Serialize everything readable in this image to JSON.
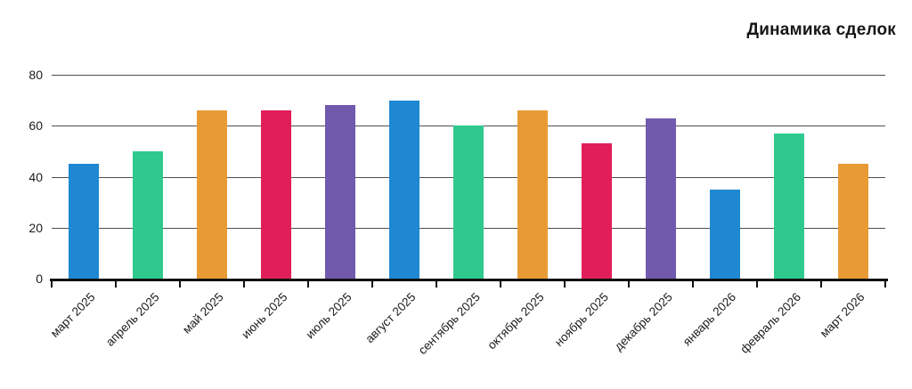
{
  "chart_data": {
    "type": "bar",
    "title": "Динамика сделок",
    "categories": [
      "март 2025",
      "апрель 2025",
      "май 2025",
      "июнь 2025",
      "июль 2025",
      "август 2025",
      "сентябрь 2025",
      "октябрь 2025",
      "ноябрь 2025",
      "декабрь 2025",
      "январь 2026",
      "февраль 2026",
      "март 2026"
    ],
    "values": [
      45,
      50,
      66,
      66,
      68,
      70,
      60,
      66,
      53,
      63,
      35,
      57,
      45
    ],
    "xlabel": "",
    "ylabel": "",
    "ylim": [
      0,
      80
    ],
    "yticks": [
      0,
      20,
      40,
      60,
      80
    ],
    "grid": true,
    "legend_position": "none",
    "title_position": "top-right",
    "bar_color_cycle": [
      "#1e88d2",
      "#2fc98e",
      "#e89b35",
      "#e11e5a",
      "#7159ae"
    ],
    "gridline_color": "#4f4f4f",
    "axis_color": "#111111",
    "text_color": "#1b1b1b",
    "background_color": "#ffffff"
  }
}
